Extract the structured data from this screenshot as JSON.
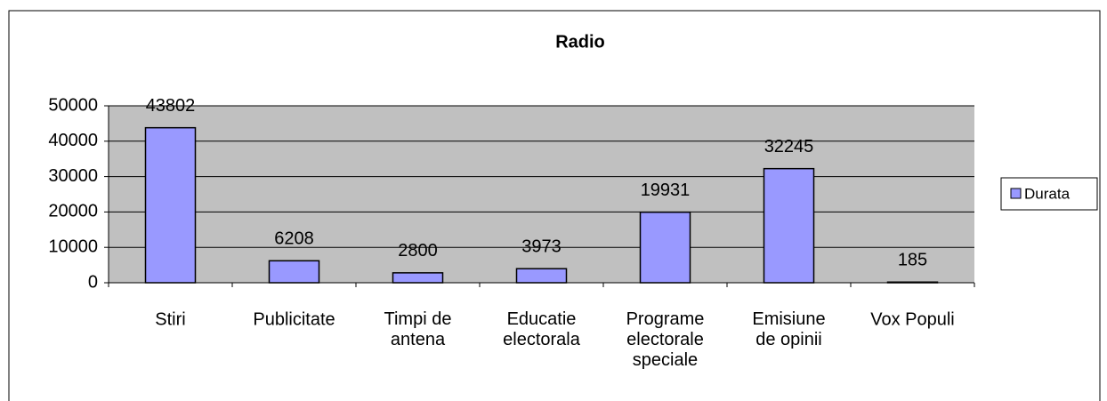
{
  "chart_data": {
    "type": "bar",
    "title": "Radio",
    "categories": [
      "Stiri",
      "Publicitate",
      "Timpi de\nantena",
      "Educatie\nelectorala",
      "Programe\nelectorale\nspeciale",
      "Emisiune\nde opinii",
      "Vox Populi"
    ],
    "series": [
      {
        "name": "Durata",
        "color": "#9999ff",
        "values": [
          43802,
          6208,
          2800,
          3973,
          19931,
          32245,
          185
        ]
      }
    ],
    "ylim": [
      0,
      50000
    ],
    "yticks": [
      0,
      10000,
      20000,
      30000,
      40000,
      50000
    ],
    "grid": true,
    "legend": "right"
  }
}
